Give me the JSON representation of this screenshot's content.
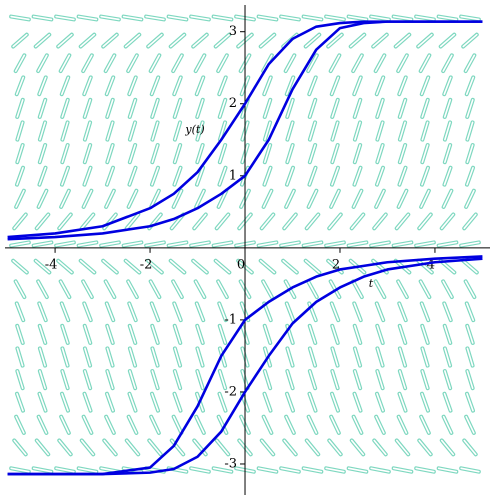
{
  "chart_data": {
    "type": "line",
    "x_label": "t",
    "y_label": "y(t)",
    "x": [
      -5,
      -4,
      -3,
      -2,
      -1.5,
      -1,
      -0.5,
      0,
      0.5,
      1,
      1.5,
      2,
      2.5,
      3,
      4,
      5
    ],
    "series": [
      {
        "color": "#0000e0",
        "values": [
          0.15,
          0.2,
          0.3,
          0.55,
          0.75,
          1.05,
          1.5,
          2.0,
          2.55,
          2.9,
          3.07,
          3.12,
          3.14,
          3.14,
          3.14,
          3.14
        ]
      },
      {
        "color": "#0000e0",
        "values": [
          0.12,
          0.15,
          0.2,
          0.3,
          0.4,
          0.55,
          0.75,
          1.0,
          1.5,
          2.2,
          2.75,
          3.05,
          3.12,
          3.14,
          3.14,
          3.14
        ]
      },
      {
        "color": "#0000e0",
        "values": [
          -3.14,
          -3.14,
          -3.14,
          -3.12,
          -3.07,
          -2.9,
          -2.55,
          -2.0,
          -1.5,
          -1.05,
          -0.75,
          -0.55,
          -0.4,
          -0.3,
          -0.2,
          -0.15
        ]
      },
      {
        "color": "#0000e0",
        "values": [
          -3.14,
          -3.14,
          -3.14,
          -3.05,
          -2.75,
          -2.2,
          -1.5,
          -1.0,
          -0.75,
          -0.55,
          -0.4,
          -0.3,
          -0.25,
          -0.2,
          -0.15,
          -0.12
        ]
      }
    ],
    "xlim": [
      -5.16,
      5.37
    ],
    "ylim": [
      -3.5,
      3.44
    ],
    "xticks": [
      -4,
      -2,
      0,
      2,
      4
    ],
    "yticks": [
      -3,
      -2,
      -1,
      1,
      2,
      3
    ],
    "field_color": "#7fd8c0"
  }
}
